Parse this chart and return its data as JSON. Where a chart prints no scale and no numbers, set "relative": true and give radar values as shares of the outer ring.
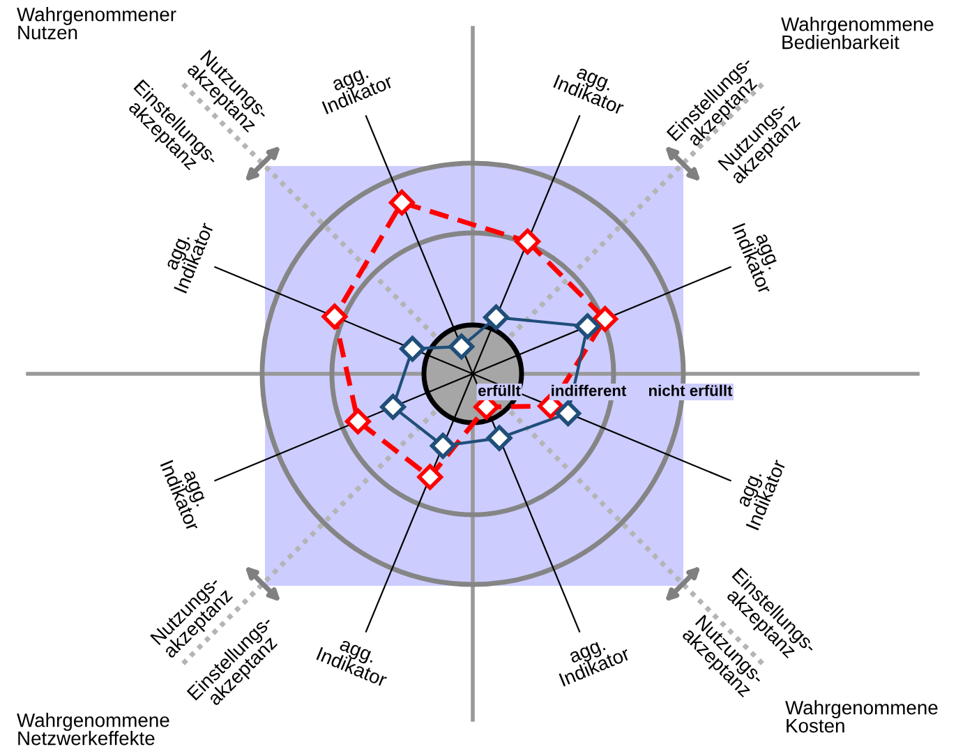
{
  "chart_data": {
    "type": "radar",
    "relative": true,
    "marker": "diamond",
    "categories": [
      "agg. Indikator",
      "agg. Indikator",
      "agg. Indikator",
      "agg. Indikator",
      "agg. Indikator",
      "agg. Indikator",
      "agg. Indikator",
      "agg. Indikator"
    ],
    "series": [
      {
        "color": "#ff0000",
        "line_style": "dashed",
        "values": [
          0.68,
          0.68,
          0.4,
          0.17,
          0.53,
          0.59,
          0.71,
          0.88
        ]
      },
      {
        "color": "#1f4e79",
        "line_style": "solid",
        "values": [
          0.29,
          0.59,
          0.49,
          0.33,
          0.37,
          0.41,
          0.31,
          0.14
        ]
      }
    ],
    "annotations": [
      "Wahrgenommener\nNutzen",
      "Wahrgenommene\nBedienbarkeit",
      "Nutzungs-\nakzeptanz",
      "Einstellungs-\nakzeptanz",
      "Einstellungs-\nakzeptanz",
      "Nutzungs-\nakzeptanz",
      "erfüllt",
      "indifferent",
      "nicht erfüllt",
      "Nutzungs-\nakzeptanz",
      "Einstellungs-\nakzeptanz",
      "Einstellungs-\nakzeptanz",
      "Nutzungs-\nakzeptanz",
      "Wahrgenommene\nNetzwerkeffekte",
      "Wahrgenommene\nKosten"
    ]
  }
}
